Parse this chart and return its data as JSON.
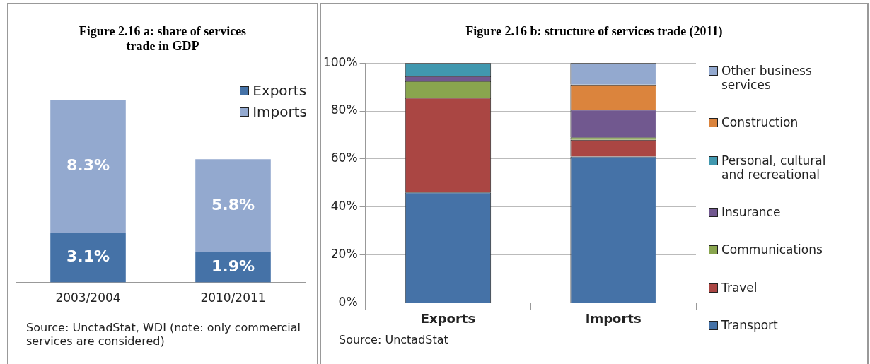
{
  "chart_data": [
    {
      "type": "bar",
      "title": "Figure 2.16 a: share of services trade in GDP",
      "categories": [
        "2003/2004",
        "2010/2011"
      ],
      "stacked": true,
      "tick_labels": "x",
      "legend": "top right",
      "grid": false,
      "series": [
        {
          "name": "Exports",
          "color": "#4572a7",
          "values": [
            3.1,
            1.9
          ],
          "value_labels": [
            "3.1%",
            "1.9%"
          ]
        },
        {
          "name": "Imports",
          "color": "#93a9cf",
          "values": [
            8.3,
            5.8
          ],
          "value_labels": [
            "8.3%",
            "5.8%"
          ]
        }
      ],
      "annotations": [
        "Source: UnctadStat, WDI (note: only commercial services are considered)"
      ]
    },
    {
      "type": "bar",
      "title": "Figure 2.16 b: structure of services trade (2011)",
      "categories": [
        "Exports",
        "Imports"
      ],
      "stacked": true,
      "legend": "right",
      "grid": "y",
      "ylim": [
        0,
        100
      ],
      "yticks": [
        {
          "value": 0,
          "label": "0%"
        },
        {
          "value": 20,
          "label": "20%"
        },
        {
          "value": 40,
          "label": "40%"
        },
        {
          "value": 60,
          "label": "60%"
        },
        {
          "value": 80,
          "label": "80%"
        },
        {
          "value": 100,
          "label": "100%"
        }
      ],
      "series": [
        {
          "name": "Transport",
          "color": "#4572a7",
          "values": [
            46,
            61
          ]
        },
        {
          "name": "Travel",
          "color": "#aa4643",
          "values": [
            39.5,
            7
          ]
        },
        {
          "name": "Communications",
          "color": "#89a54e",
          "values": [
            7,
            1
          ]
        },
        {
          "name": "Insurance",
          "color": "#71588f",
          "values": [
            2,
            11.5
          ]
        },
        {
          "name": "Personal, cultural and recreational",
          "color": "#4198af",
          "values": [
            5.5,
            0
          ]
        },
        {
          "name": "Construction",
          "color": "#db843d",
          "values": [
            0,
            10.5
          ]
        },
        {
          "name": "Other business services",
          "color": "#93a9cf",
          "values": [
            0,
            9
          ]
        }
      ],
      "annotations": [
        "Source: UnctadStat"
      ]
    }
  ]
}
